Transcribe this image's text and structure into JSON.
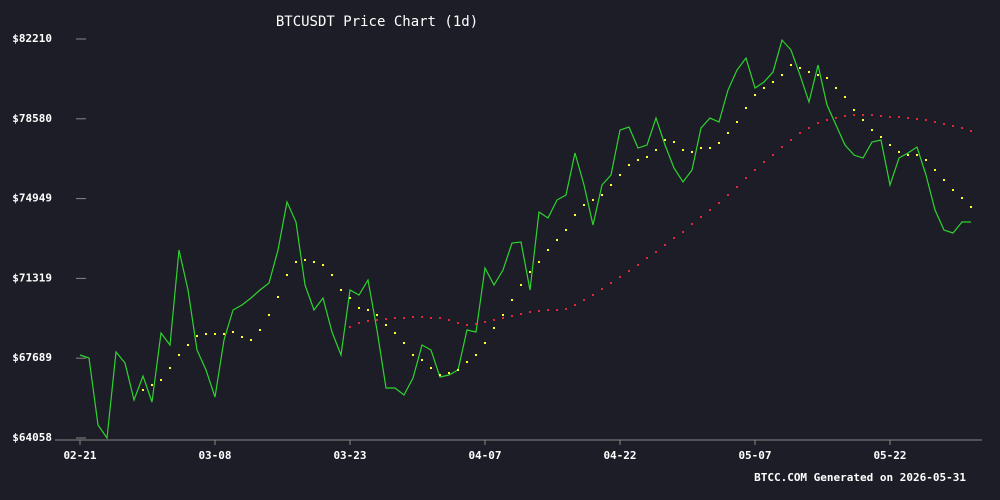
{
  "chart_data": {
    "type": "line",
    "title": "BTCUSDT Price Chart (1d)",
    "footer": "BTCC.COM Generated on 2026-05-31",
    "categories": [
      "02-21",
      null,
      null,
      null,
      null,
      null,
      null,
      null,
      null,
      null,
      null,
      null,
      null,
      null,
      null,
      "03-08",
      null,
      null,
      null,
      null,
      null,
      null,
      null,
      null,
      null,
      null,
      null,
      null,
      null,
      null,
      "03-23",
      null,
      null,
      null,
      null,
      null,
      null,
      null,
      null,
      null,
      null,
      null,
      null,
      null,
      null,
      "04-07",
      null,
      null,
      null,
      null,
      null,
      null,
      null,
      null,
      null,
      null,
      null,
      null,
      null,
      null,
      "04-22",
      null,
      null,
      null,
      null,
      null,
      null,
      null,
      null,
      null,
      null,
      null,
      null,
      null,
      null,
      "05-07",
      null,
      null,
      null,
      null,
      null,
      null,
      null,
      null,
      null,
      null,
      null,
      null,
      null,
      null,
      "05-22",
      null,
      null,
      null,
      null,
      null,
      null,
      null,
      null,
      null
    ],
    "series": [
      {
        "color": "#2fd32f",
        "style": "line",
        "values": [
          67834,
          67697,
          64649,
          64058,
          67970,
          67470,
          65787,
          66878,
          65696,
          68835,
          68289,
          72610,
          70791,
          68061,
          67151,
          65923,
          68516,
          69881,
          70108,
          70427,
          70791,
          71109,
          72610,
          74794,
          73884,
          71018,
          69881,
          70427,
          68880,
          67834,
          70791,
          70563,
          71246,
          68971,
          66333,
          66333,
          66014,
          66787,
          68289,
          68061,
          66833,
          66924,
          67151,
          68971,
          68880,
          71792,
          71018,
          71701,
          72929,
          72974,
          70791,
          74339,
          74066,
          74885,
          75112,
          77023,
          75567,
          73748,
          75567,
          76022,
          78069,
          78206,
          77250,
          77387,
          78615,
          77387,
          76341,
          75704,
          76249,
          78160,
          78615,
          78433,
          79889,
          80799,
          81344,
          79980,
          80253,
          80708,
          82163,
          81708,
          80571,
          79343,
          81026,
          79207,
          78297,
          77387,
          76932,
          76795,
          77523,
          77614,
          75567,
          76795,
          77023,
          77296,
          76022,
          74430,
          73520,
          73384,
          73884,
          73884
        ]
      },
      {
        "color": "#ffff33",
        "style": "dots",
        "values": [
          null,
          null,
          null,
          null,
          null,
          null,
          null,
          66242,
          66469,
          66697,
          67243,
          67834,
          68289,
          68698,
          68789,
          68789,
          68789,
          68880,
          68653,
          68516,
          68971,
          69654,
          70473,
          71474,
          72065,
          72156,
          72065,
          71928,
          71474,
          70791,
          70427,
          69972,
          69881,
          69654,
          69199,
          68835,
          68380,
          67834,
          67607,
          67243,
          66924,
          67015,
          67152,
          67516,
          67834,
          68380,
          69062,
          69654,
          70336,
          71019,
          71610,
          72065,
          72611,
          73066,
          73521,
          74203,
          74658,
          74886,
          75113,
          75568,
          76023,
          76478,
          76705,
          76842,
          77160,
          77615,
          77524,
          77160,
          77069,
          77251,
          77251,
          77479,
          77934,
          78434,
          79071,
          79662,
          79981,
          80254,
          80572,
          81027,
          80891,
          80709,
          80572,
          80436,
          79981,
          79571,
          78980,
          78525,
          78070,
          77752,
          77388,
          77069,
          76933,
          76933,
          76705,
          76250,
          75795,
          75341,
          74977,
          74567
        ]
      },
      {
        "color": "#e0283c",
        "style": "dots",
        "values": [
          null,
          null,
          null,
          null,
          null,
          null,
          null,
          null,
          null,
          null,
          null,
          null,
          null,
          null,
          null,
          null,
          null,
          null,
          null,
          null,
          null,
          null,
          null,
          null,
          null,
          null,
          null,
          null,
          null,
          null,
          69108,
          69290,
          69381,
          69426,
          69472,
          69517,
          69517,
          69563,
          69563,
          69517,
          69517,
          69426,
          69290,
          69199,
          69244,
          69335,
          69426,
          69517,
          69608,
          69699,
          69790,
          69836,
          69881,
          69881,
          69927,
          70109,
          70336,
          70564,
          70837,
          71110,
          71383,
          71656,
          71928,
          72247,
          72520,
          72838,
          73157,
          73430,
          73794,
          74112,
          74431,
          74749,
          75113,
          75477,
          75886,
          76250,
          76614,
          76933,
          77297,
          77615,
          77934,
          78161,
          78389,
          78525,
          78616,
          78707,
          78753,
          78753,
          78753,
          78707,
          78662,
          78662,
          78616,
          78571,
          78525,
          78434,
          78343,
          78252,
          78161,
          78025
        ]
      }
    ],
    "ylim": [
      64058,
      82210
    ],
    "yticks": [
      {
        "value": 64058,
        "label": "$64058"
      },
      {
        "value": 67689,
        "label": "$67689"
      },
      {
        "value": 71319,
        "label": "$71319"
      },
      {
        "value": 74949,
        "label": "$74949"
      },
      {
        "value": 78580,
        "label": "$78580"
      },
      {
        "value": 82210,
        "label": "$82210"
      }
    ]
  }
}
